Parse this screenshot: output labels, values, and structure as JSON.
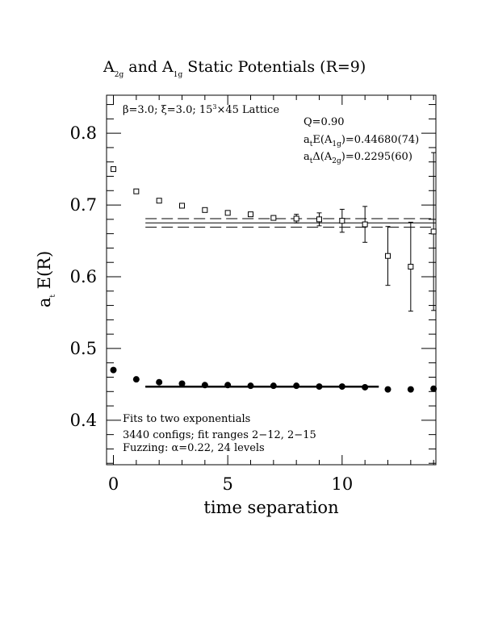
{
  "chart_data": {
    "type": "scatter",
    "title": {
      "a": "A",
      "a_sub": "2g",
      "mid": " and A",
      "b_sub": "1g",
      "rest": " Static Potentials (R=9)"
    },
    "xlabel": "time separation",
    "ylabel": {
      "pre": "a",
      "sub": "t",
      "post": " E(R)"
    },
    "xlim": [
      -0.3,
      14.1
    ],
    "ylim": [
      0.338,
      0.853
    ],
    "x_ticks": [
      0,
      5,
      10
    ],
    "y_ticks": [
      0.4,
      0.5,
      0.6,
      0.7,
      0.8
    ],
    "y_tick_labels": [
      "0.4",
      "0.5",
      "0.6",
      "0.7",
      "0.8"
    ],
    "x_tick_labels": [
      "0",
      "5",
      "10"
    ],
    "annotations": {
      "lattice": {
        "beta": "β=3.0; ",
        "xi": "ξ=3.0; 15",
        "sup": "3",
        "rest": "×45 Lattice"
      },
      "q": "Q=0.90",
      "energy": {
        "pre": "a",
        "sub1": "t",
        "mid": "E(A",
        "sub2": "1g",
        "post": ")=0.44680(74)"
      },
      "gap": {
        "pre": "a",
        "sub1": "t",
        "mid": "Δ(A",
        "sub2": "2g",
        "post": ")=0.2295(60)"
      },
      "fits": "Fits to two exponentials",
      "configs": "3440 configs; fit ranges 2−12, 2−15",
      "fuzzing": "Fuzzing: α=0.22, 24 levels"
    },
    "series": [
      {
        "marker": "open-square",
        "x": [
          0,
          1,
          2,
          3,
          4,
          5,
          6,
          7,
          8,
          9,
          10,
          11,
          12,
          13,
          14
        ],
        "y": [
          0.75,
          0.719,
          0.706,
          0.699,
          0.693,
          0.689,
          0.687,
          0.682,
          0.681,
          0.68,
          0.678,
          0.673,
          0.629,
          0.614,
          0.663
        ],
        "err": [
          0.002,
          0.002,
          0.002,
          0.002,
          0.002,
          0.002,
          0.003,
          0.003,
          0.006,
          0.009,
          0.016,
          0.025,
          0.041,
          0.062,
          0.11
        ]
      },
      {
        "marker": "filled-circle",
        "x": [
          0,
          1,
          2,
          3,
          4,
          5,
          6,
          7,
          8,
          9,
          10,
          11,
          12,
          13,
          14
        ],
        "y": [
          0.47,
          0.457,
          0.453,
          0.451,
          0.449,
          0.449,
          0.448,
          0.448,
          0.448,
          0.447,
          0.447,
          0.446,
          0.443,
          0.443,
          0.444
        ],
        "err": [
          0.001,
          0.001,
          0.001,
          0.001,
          0.001,
          0.001,
          0.001,
          0.001,
          0.001,
          0.001,
          0.001,
          0.001,
          0.001,
          0.001,
          0.001
        ]
      }
    ],
    "fits": [
      {
        "style": "solid",
        "x_range": [
          1.4,
          14.1
        ],
        "y": 0.675
      },
      {
        "style": "dashed",
        "x_range": [
          1.4,
          14.1
        ],
        "y": 0.681
      },
      {
        "style": "dashed",
        "x_range": [
          1.4,
          14.1
        ],
        "y": 0.669
      },
      {
        "style": "solid-thick",
        "x_range": [
          1.4,
          11.6
        ],
        "y": 0.4468
      },
      {
        "style": "dashed",
        "x_range": [
          1.4,
          11.6
        ],
        "y": 0.4475
      },
      {
        "style": "dashed",
        "x_range": [
          1.4,
          11.6
        ],
        "y": 0.4461
      }
    ]
  }
}
